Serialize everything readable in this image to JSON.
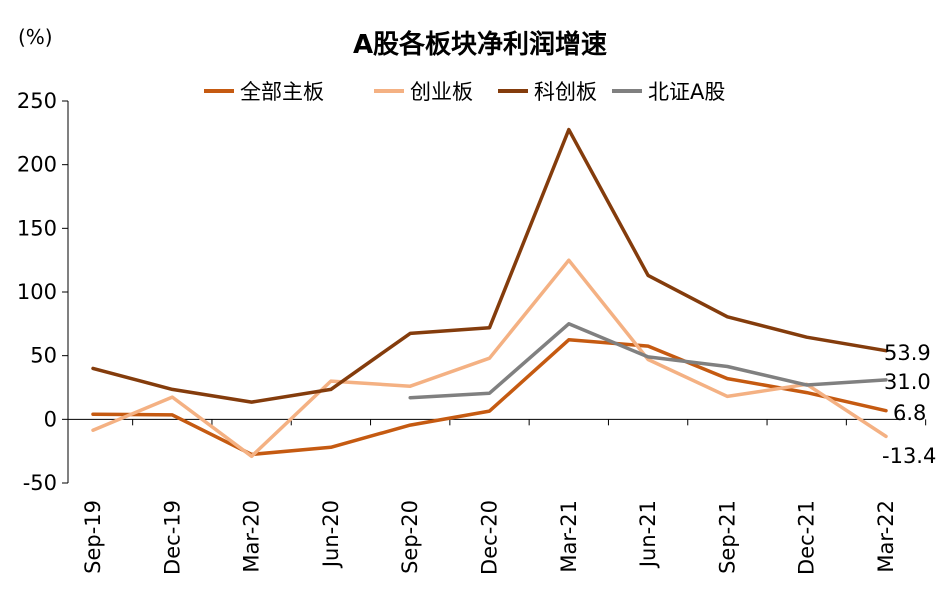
{
  "chart_data": {
    "type": "line",
    "title": "A股各板块净利润增速",
    "unit_label": "(%)",
    "xlabel": "",
    "ylabel": "",
    "categories": [
      "Sep-19",
      "Dec-19",
      "Mar-20",
      "Jun-20",
      "Sep-20",
      "Dec-20",
      "Mar-21",
      "Jun-21",
      "Sep-21",
      "Dec-21",
      "Mar-22"
    ],
    "ylim": [
      -50,
      250
    ],
    "yticks": [
      -50,
      0,
      50,
      100,
      150,
      200,
      250
    ],
    "grid": false,
    "legend_position": "top",
    "series": [
      {
        "name": "全部主板",
        "color": "#C55A11",
        "values": [
          4,
          3.5,
          -27.5,
          -22,
          -4.5,
          6.5,
          62.5,
          57.5,
          32,
          21,
          6.8
        ],
        "end_label": "6.8"
      },
      {
        "name": "创业板",
        "color": "#F4B183",
        "values": [
          -8.5,
          17.5,
          -29,
          30,
          26,
          48,
          125,
          47,
          18,
          27.5,
          -13.4
        ],
        "end_label": "-13.4"
      },
      {
        "name": "科创板",
        "color": "#843C0C",
        "values": [
          40,
          23.5,
          13.5,
          23.5,
          67.5,
          72,
          227.5,
          113,
          80.5,
          64.5,
          53.9
        ],
        "end_label": "53.9"
      },
      {
        "name": "北证A股",
        "color": "#808080",
        "values": [
          null,
          null,
          null,
          null,
          17,
          20.5,
          75,
          49,
          41.5,
          27,
          31.0
        ],
        "end_label": "31.0"
      }
    ]
  }
}
